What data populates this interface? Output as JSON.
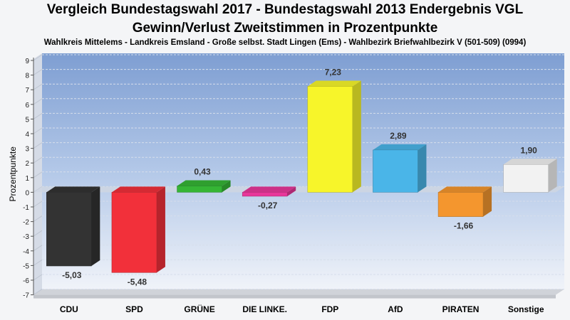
{
  "title": "Vergleich Bundestagswahl 2017 - Bundestagswahl 2013 Endergebnis VGL",
  "subtitle": "Gewinn/Verlust Zweitstimmen in Prozentpunkte",
  "caption": "Wahlkreis Mittelems - Landkreis Emsland - Große selbst. Stadt Lingen (Ems) - Wahlbezirk Briefwahlbezirk V (501-509) (0994)",
  "chart_data": {
    "type": "bar",
    "ylabel": "Prozentpunkte",
    "ylim": [
      -7,
      9
    ],
    "yticks": [
      "9",
      "8",
      "7",
      "6",
      "5",
      "4",
      "3",
      "2",
      "1",
      "0",
      "-1",
      "-2",
      "-3",
      "-4",
      "-5",
      "-6",
      "-7"
    ],
    "categories": [
      "CDU",
      "SPD",
      "GRÜNE",
      "DIE LINKE.",
      "FDP",
      "AfD",
      "PIRATEN",
      "Sonstige"
    ],
    "values": [
      -5.03,
      -5.48,
      0.43,
      -0.27,
      7.23,
      2.89,
      -1.66,
      1.9
    ],
    "value_labels": [
      "-5,03",
      "-5,48",
      "0,43",
      "-0,27",
      "7,23",
      "2,89",
      "-1,66",
      "1,90"
    ],
    "colors": [
      "#333333",
      "#f2303a",
      "#35b535",
      "#e8369a",
      "#f7f52a",
      "#4ab5e8",
      "#f4962e",
      "#f2f2f2"
    ],
    "grid": true,
    "legend": "none",
    "style": "3d"
  }
}
